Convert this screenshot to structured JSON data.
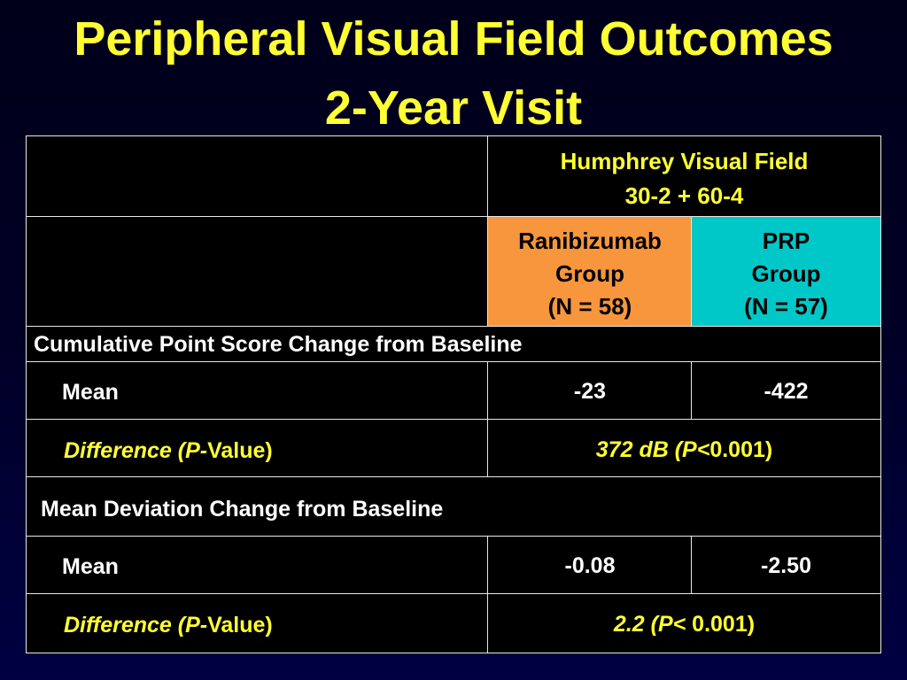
{
  "title": {
    "line1": "Peripheral Visual Field Outcomes",
    "line2": "2-Year Visit"
  },
  "table": {
    "header": {
      "line1": "Humphrey Visual Field",
      "line2": "30-2 + 60-4"
    },
    "ranibizumab": {
      "line1": "Ranibizumab",
      "line2": "Group",
      "line3": "(N = 58)",
      "color": "#f7963c"
    },
    "prp": {
      "line1": "PRP",
      "line2": "Group",
      "line3": "(N = 57)",
      "color": "#00c8c8"
    },
    "section1": {
      "title": "Cumulative Point Score Change from Baseline",
      "mean_label": "Mean",
      "mean_ranibizumab": "-23",
      "mean_prp": "-422",
      "diff_label_prefix": "Difference (P-",
      "diff_label_suffix": "Value)",
      "diff_value_prefix": "372 dB (P<",
      "diff_value_suffix": "0.001)"
    },
    "section2": {
      "title": "Mean Deviation Change from Baseline",
      "mean_label": "Mean",
      "mean_ranibizumab": "-0.08",
      "mean_prp": "-2.50",
      "diff_label_prefix": "Difference (P-",
      "diff_label_suffix": "Value)",
      "diff_value_prefix": "2.2 (P<",
      "diff_value_suffix": " 0.001)"
    }
  },
  "colors": {
    "title": "#ffff33",
    "grid_line": "#e8e8e8",
    "background": "#000024"
  }
}
